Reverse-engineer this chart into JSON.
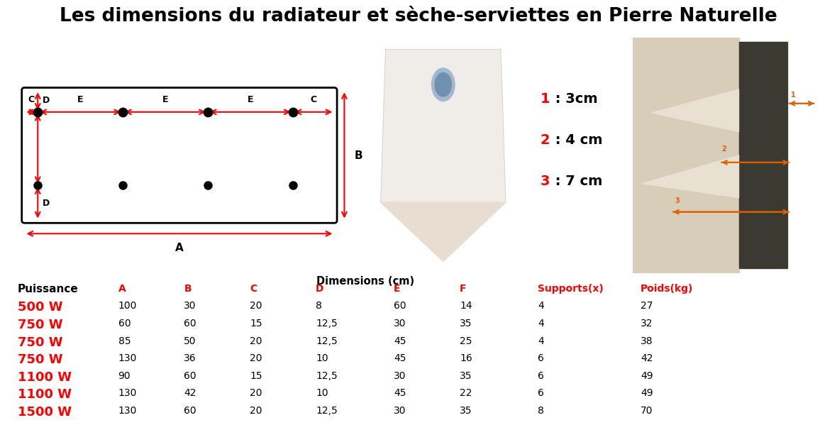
{
  "title": "Les dimensions du radiateur et sèche-serviettes en Pierre Naturelle",
  "title_fontsize": 19,
  "table_header": [
    "Puissance",
    "A",
    "B",
    "C",
    "D",
    "E",
    "F",
    "Supports(x)",
    "Poids(kg)"
  ],
  "header_colors": [
    "black",
    "red",
    "red",
    "red",
    "red",
    "red",
    "red",
    "red",
    "red"
  ],
  "table_rows": [
    [
      "500 W",
      "100",
      "30",
      "20",
      "8",
      "60",
      "14",
      "4",
      "27"
    ],
    [
      "750 W",
      "60",
      "60",
      "15",
      "12,5",
      "30",
      "35",
      "4",
      "32"
    ],
    [
      "750 W",
      "85",
      "50",
      "20",
      "12,5",
      "45",
      "25",
      "4",
      "38"
    ],
    [
      "750 W",
      "130",
      "36",
      "20",
      "10",
      "45",
      "16",
      "6",
      "42"
    ],
    [
      "1100 W",
      "90",
      "60",
      "15",
      "12,5",
      "30",
      "35",
      "6",
      "49"
    ],
    [
      "1100 W",
      "130",
      "42",
      "20",
      "10",
      "45",
      "22",
      "6",
      "49"
    ],
    [
      "1500 W",
      "130",
      "60",
      "20",
      "12,5",
      "30",
      "35",
      "8",
      "70"
    ]
  ],
  "dim_label": "Dimensions (cm)",
  "legend": [
    {
      "num": "1",
      "rest": " : 3cm"
    },
    {
      "num": "2",
      "rest": " : 4 cm"
    },
    {
      "num": "3",
      "rest": " : 7 cm"
    }
  ],
  "arrow_color": "#ff0000",
  "fig_bg": "white",
  "bracket_photo_color": "#d8ccbb",
  "bracket_photo_bg": "#e8ddd0",
  "stone_photo_color": "#6a7060"
}
